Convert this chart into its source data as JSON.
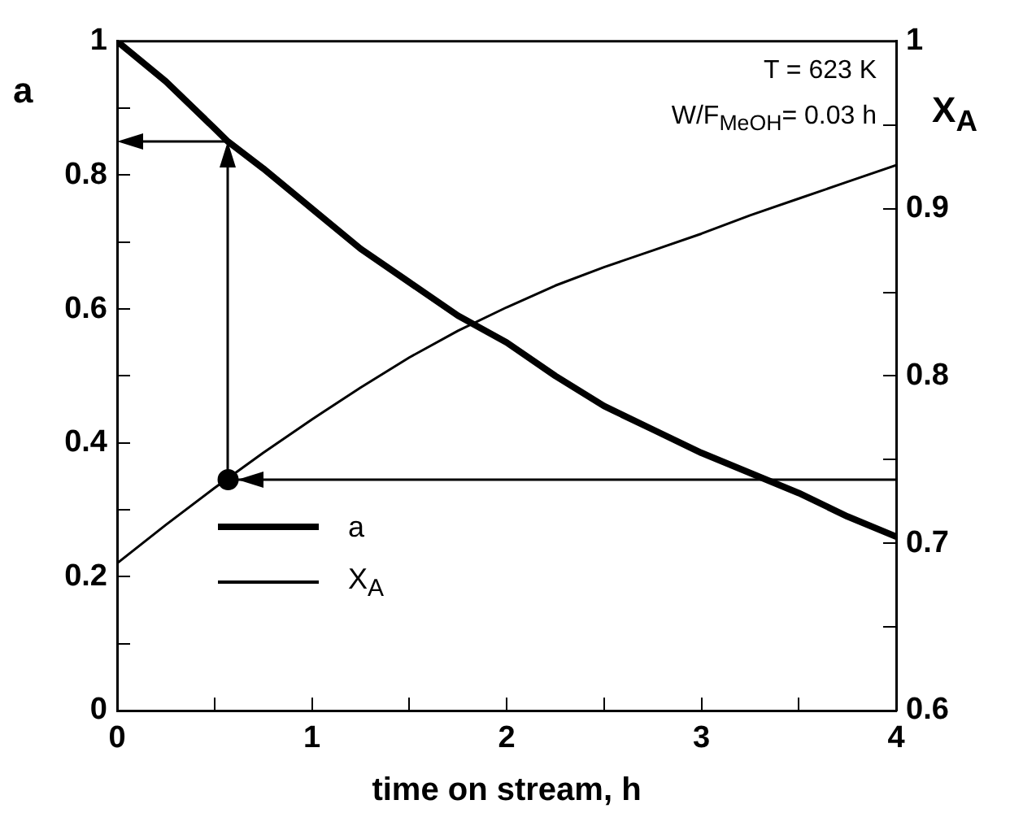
{
  "chart_data": {
    "type": "line",
    "xlabel": "time on stream, h",
    "ylabel": "a",
    "y2label": "X$_{A}$",
    "annotations": [
      "T = 623 K",
      "W/F$_{MeOH}$= 0.03 h"
    ],
    "xlim": [
      0,
      4
    ],
    "xticks": [
      0,
      {
        "value": 0.5,
        "label": null
      },
      1,
      {
        "value": 1.5,
        "label": null
      },
      2,
      {
        "value": 2.5,
        "label": null
      },
      3,
      {
        "value": 3.5,
        "label": null
      },
      4
    ],
    "ylim": [
      0,
      1
    ],
    "yticks": [
      0,
      {
        "value": 0.1,
        "label": null
      },
      0.2,
      {
        "value": 0.3,
        "label": null
      },
      0.4,
      {
        "value": 0.5,
        "label": null
      },
      0.6,
      {
        "value": 0.7,
        "label": null
      },
      0.8,
      {
        "value": 0.9,
        "label": null
      },
      1
    ],
    "y2lim": [
      0.6,
      1
    ],
    "y2ticks": [
      0.6,
      {
        "value": 0.65,
        "label": null
      },
      0.7,
      {
        "value": 0.75,
        "label": null
      },
      0.8,
      {
        "value": 0.85,
        "label": null
      },
      0.9,
      {
        "value": 0.95,
        "label": null
      },
      1
    ],
    "grid": false,
    "legend": "bottom left",
    "marker": "none",
    "line_style": "solid",
    "series": [
      {
        "name": "a",
        "color": "#000000",
        "x": [
          0,
          0.25,
          0.5,
          0.57,
          0.75,
          1,
          1.25,
          1.5,
          1.75,
          2,
          2.25,
          2.5,
          2.75,
          3,
          3.25,
          3.5,
          3.75,
          4
        ],
        "values": [
          1,
          0.94,
          0.87,
          0.85,
          0.81,
          0.75,
          0.69,
          0.64,
          0.59,
          0.55,
          0.5,
          0.455,
          0.42,
          0.385,
          0.355,
          0.325,
          0.29,
          0.26
        ]
      },
      {
        "name": "X$_{A}$",
        "color": "#000000",
        "axis": "y2",
        "x": [
          0,
          0.25,
          0.5,
          0.75,
          1,
          1.25,
          1.5,
          1.75,
          2,
          2.25,
          2.5,
          2.75,
          3,
          3.25,
          3.5,
          3.75,
          4
        ],
        "values": [
          0.688,
          0.711,
          0.733,
          0.754,
          0.774,
          0.793,
          0.811,
          0.827,
          0.841,
          0.854,
          0.865,
          0.875,
          0.885,
          0.896,
          0.906,
          0.916,
          0.926
        ]
      },
      {
        "type": "scatter",
        "color": "#000000",
        "axis": "y2",
        "marker": "circle",
        "x": [
          0.57
        ],
        "values": [
          0.738
        ]
      },
      {
        "color": "#000000",
        "axis": "y2",
        "x": [
          0.57,
          4
        ],
        "values": [
          0.738,
          0.738
        ]
      }
    ]
  }
}
